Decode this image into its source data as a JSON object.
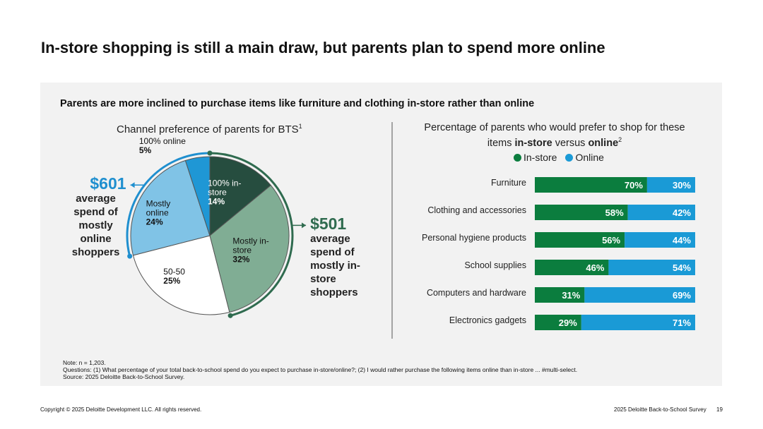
{
  "title": "In-store shopping is still a main draw, but parents plan to spend more online",
  "subtitle": "Parents are more inclined to purchase items like furniture and clothing in-store rather than online",
  "chart_data": [
    {
      "type": "pie",
      "title": "Channel preference of parents for BTS",
      "title_note": "1",
      "categories": [
        "100% in-store",
        "Mostly in-store",
        "50-50",
        "Mostly online",
        "100% online"
      ],
      "values": [
        14,
        32,
        25,
        24,
        5
      ],
      "value_labels": [
        "14%",
        "32%",
        "25%",
        "24%",
        "5%"
      ],
      "colors": [
        "#264d3f",
        "#80ad94",
        "#ffffff",
        "#80c3e6",
        "#1f97d5"
      ],
      "callouts": [
        {
          "amount": "$601",
          "text": "average spend of mostly online shoppers",
          "color": "#1f8fcf"
        },
        {
          "amount": "$501",
          "text": "average spend of mostly in-store shoppers",
          "color": "#2f6b4f"
        }
      ]
    },
    {
      "type": "bar",
      "orientation": "horizontal",
      "stacked": true,
      "title": [
        {
          "text": "Percentage of parents who would prefer to shop for these items ",
          "bold": false
        },
        {
          "text": "in-store",
          "bold": true
        },
        {
          "text": " versus ",
          "bold": false
        },
        {
          "text": "online",
          "bold": true
        }
      ],
      "title_note": "2",
      "categories": [
        "Furniture",
        "Clothing and accessories",
        "Personal hygiene products",
        "School supplies",
        "Computers and hardware",
        "Electronics gadgets"
      ],
      "xlim": [
        0,
        100
      ],
      "series": [
        {
          "name": "In-store",
          "color": "#0b7d3e",
          "values": [
            70,
            58,
            56,
            46,
            31,
            29
          ],
          "value_labels": [
            "70%",
            "58%",
            "56%",
            "46%",
            "31%",
            "29%"
          ]
        },
        {
          "name": "Online",
          "color": "#1a9ad6",
          "values": [
            30,
            42,
            44,
            54,
            69,
            71
          ],
          "value_labels": [
            "30%",
            "42%",
            "44%",
            "54%",
            "69%",
            "71%"
          ]
        }
      ]
    }
  ],
  "notes": [
    "Note: n = 1,203.",
    "Questions: (1) What percentage of your total back-to-school spend do you expect to purchase in-store/online?; (2) I would rather purchase the following items online than in-store ... #multi-select.",
    "Source: 2025 Deloitte Back-to-School Survey."
  ],
  "footer": {
    "copyright": "Copyright © 2025 Deloitte Development LLC. All rights reserved.",
    "source": "2025 Deloitte Back-to-School Survey",
    "page": "19"
  }
}
